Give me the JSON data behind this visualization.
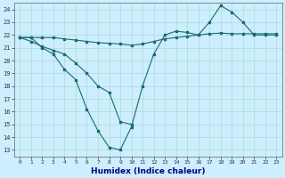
{
  "xlabel": "Humidex (Indice chaleur)",
  "background_color": "#cceeff",
  "grid_color": "#aaddcc",
  "line_color": "#1a6b6b",
  "x_values": [
    0,
    1,
    2,
    3,
    4,
    5,
    6,
    7,
    8,
    9,
    10,
    11,
    12,
    13,
    14,
    15,
    16,
    17,
    18,
    19,
    20,
    21,
    22,
    23
  ],
  "line1": [
    21.8,
    21.8,
    21.0,
    20.5,
    19.3,
    18.5,
    16.2,
    14.5,
    13.2,
    13.0,
    14.8,
    18.0,
    20.5,
    22.0,
    22.3,
    22.2,
    22.0,
    23.0,
    24.3,
    23.8,
    23.0,
    22.0,
    22.0,
    22.0
  ],
  "line2": [
    21.8,
    21.5,
    21.1,
    20.8,
    20.5,
    19.8,
    19.0,
    18.0,
    17.5,
    15.2,
    15.0,
    null,
    null,
    null,
    null,
    null,
    null,
    null,
    null,
    null,
    null,
    null,
    null,
    null
  ],
  "line3": [
    21.8,
    21.8,
    21.8,
    21.8,
    21.7,
    21.6,
    21.5,
    21.4,
    21.35,
    21.3,
    21.2,
    21.3,
    21.5,
    21.7,
    21.8,
    21.9,
    22.0,
    22.1,
    22.15,
    22.1,
    22.1,
    22.1,
    22.1,
    22.1
  ],
  "ylim": [
    12.5,
    24.5
  ],
  "xlim": [
    -0.5,
    23.5
  ],
  "yticks": [
    13,
    14,
    15,
    16,
    17,
    18,
    19,
    20,
    21,
    22,
    23,
    24
  ],
  "xticks": [
    0,
    1,
    2,
    3,
    4,
    5,
    6,
    7,
    8,
    9,
    10,
    11,
    12,
    13,
    14,
    15,
    16,
    17,
    18,
    19,
    20,
    21,
    22,
    23
  ]
}
